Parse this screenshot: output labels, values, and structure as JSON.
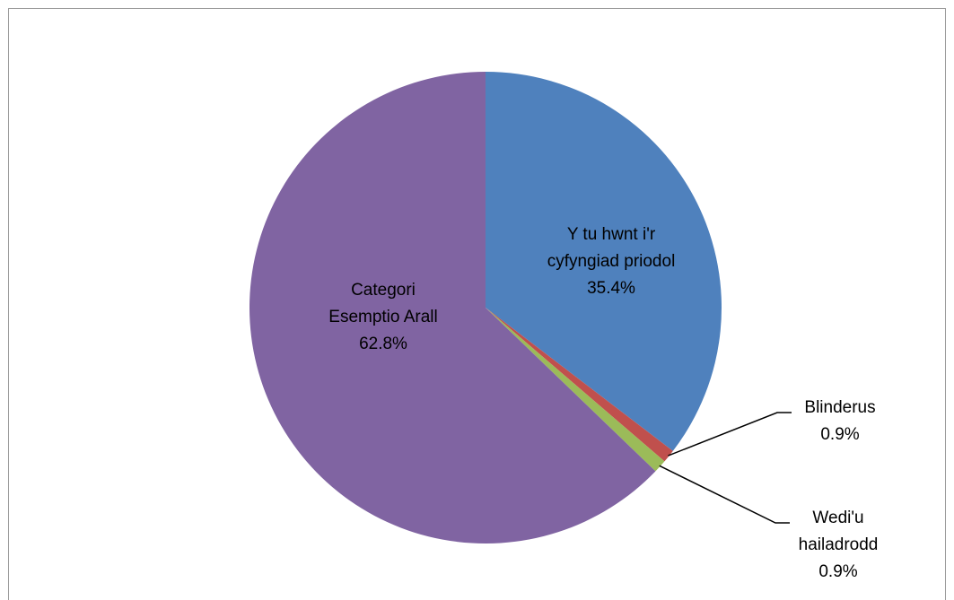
{
  "chart_data": {
    "type": "pie",
    "title": "",
    "start_angle_deg": 0,
    "direction": "clockwise",
    "slices": [
      {
        "name": "Y tu hwnt i'r cyfyngiad priodol",
        "value": 35.4,
        "label_lines": [
          "Y tu hwnt i'r",
          "cyfyngiad priodol",
          "35.4%"
        ],
        "color": "#4F81BD"
      },
      {
        "name": "Blinderus",
        "value": 0.9,
        "label_lines": [
          "Blinderus",
          "0.9%"
        ],
        "color": "#C0504D"
      },
      {
        "name": "Wedi'u hailadrodd",
        "value": 0.9,
        "label_lines": [
          "Wedi'u",
          "hailadrodd",
          "0.9%"
        ],
        "color": "#9BBB59"
      },
      {
        "name": "Categori Esemptio Arall",
        "value": 62.8,
        "label_lines": [
          "Categori",
          "Esemptio Arall",
          "62.8%"
        ],
        "color": "#8064A2"
      }
    ],
    "legend": "none"
  }
}
